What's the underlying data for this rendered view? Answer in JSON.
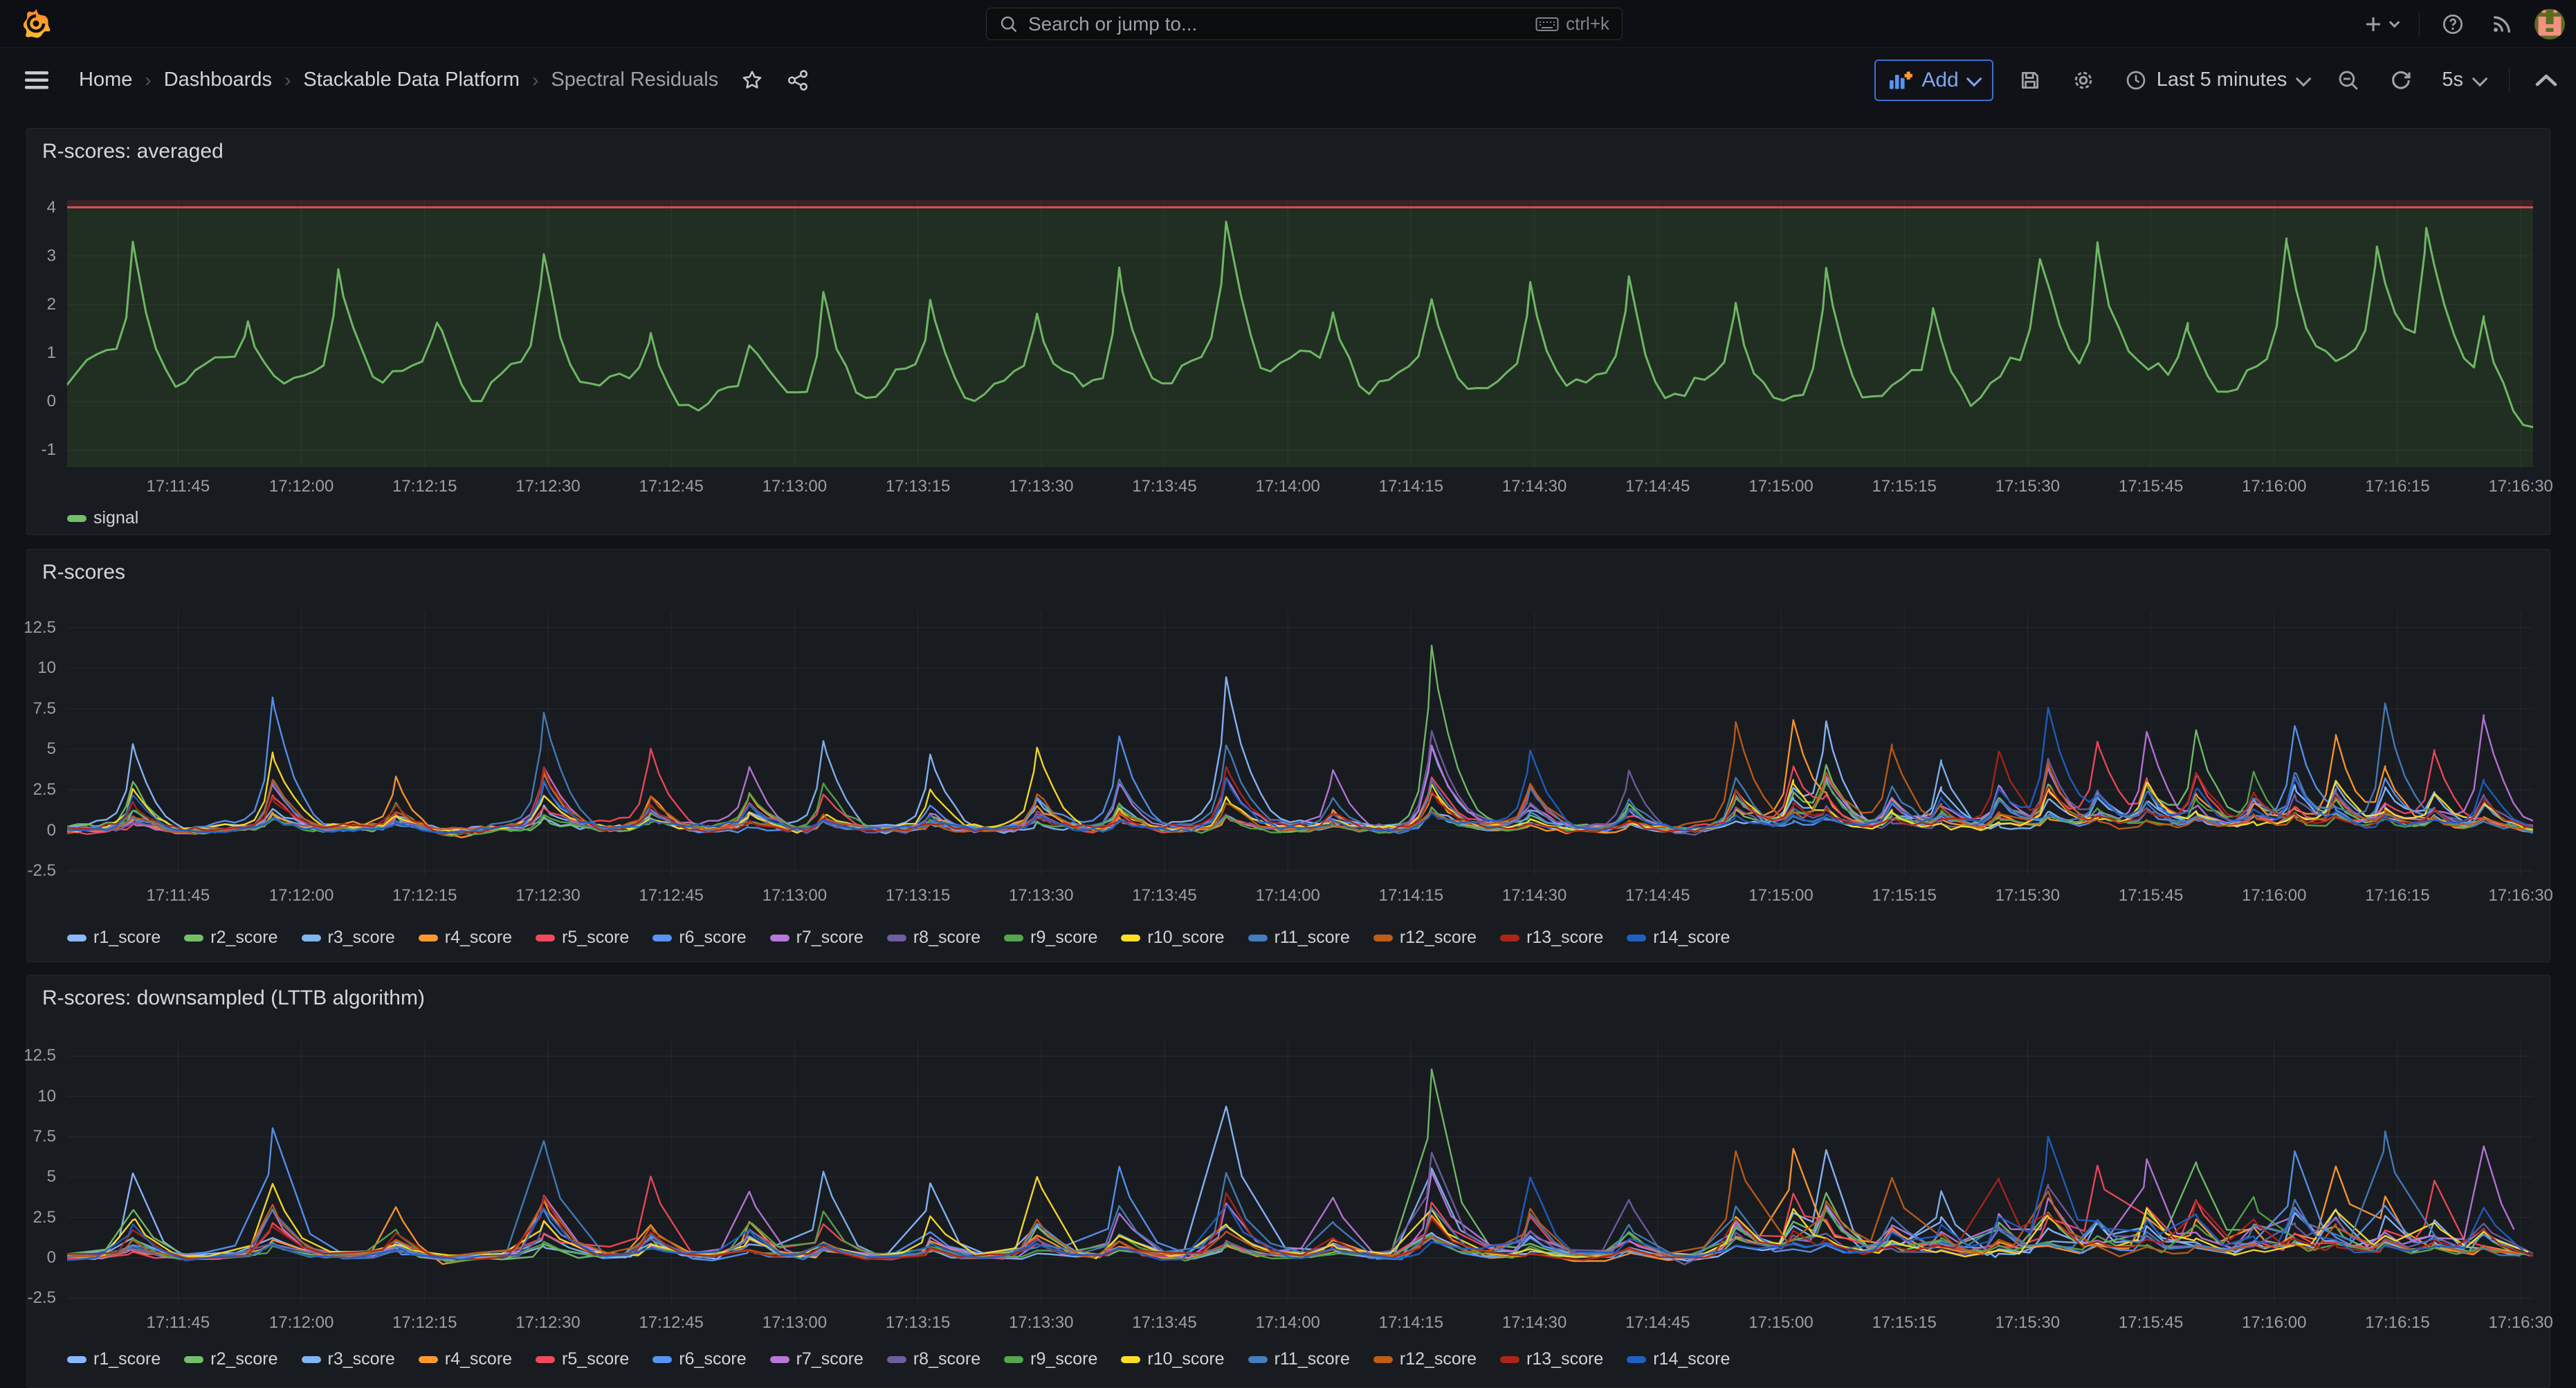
{
  "topbar": {
    "search_placeholder": "Search or jump to...",
    "search_shortcut": "ctrl+k"
  },
  "breadcrumb": {
    "items": [
      "Home",
      "Dashboards",
      "Stackable Data Platform",
      "Spectral Residuals"
    ]
  },
  "toolbar": {
    "add_label": "Add",
    "time_range_label": "Last 5 minutes",
    "refresh_interval_label": "5s"
  },
  "icons": [
    "grafana-logo",
    "search",
    "keyboard",
    "plus",
    "chevron-down",
    "help-circle",
    "rss",
    "user-avatar",
    "menu",
    "star",
    "share",
    "add-panel",
    "save",
    "settings",
    "clock",
    "zoom-out",
    "refresh",
    "chevron-up"
  ],
  "colors": {
    "accent_blue": "#3f6fd0",
    "threshold_red_line": "#d05059",
    "threshold_above_fill": "#3a2327",
    "threshold_below_fill": "#212e22",
    "panel_bg": "#181b20",
    "page_bg": "#111217"
  },
  "chart_data": [
    {
      "type": "line",
      "title": "R-scores: averaged",
      "x_tick_labels": [
        "17:11:45",
        "17:12:00",
        "17:12:15",
        "17:12:30",
        "17:12:45",
        "17:13:00",
        "17:13:15",
        "17:13:30",
        "17:13:45",
        "17:14:00",
        "17:14:15",
        "17:14:30",
        "17:14:45",
        "17:15:00",
        "17:15:15",
        "17:15:30",
        "17:15:45",
        "17:16:00",
        "17:16:15",
        "17:16:30"
      ],
      "x_tick_start_frac": 0.045,
      "x_tick_step_frac": 0.05,
      "x_window_seconds": 300,
      "y_ticks": [
        4,
        3,
        2,
        1,
        0,
        -1
      ],
      "y_tick_labels": [
        "4",
        "3",
        "2",
        "1",
        "0",
        "-1"
      ],
      "ylim": [
        -1.35,
        4.15
      ],
      "threshold": {
        "value": 4,
        "line_color": "#d05059",
        "above_fill": "#3a2327",
        "below_fill": "#212e22"
      },
      "series": [
        {
          "name": "signal",
          "color": "#73bf69"
        }
      ],
      "sample_step_s": 1.2,
      "noise": 0.26,
      "wander": 0.2,
      "pre": 0.9,
      "dip": 0.85,
      "line_width": 3,
      "spikes_t_peak": [
        [
          8,
          3.3
        ],
        [
          22,
          1.4
        ],
        [
          33,
          2.9
        ],
        [
          45,
          1.6
        ],
        [
          58,
          3.2
        ],
        [
          71,
          1.5
        ],
        [
          83,
          1.3
        ],
        [
          92,
          2.9
        ],
        [
          105,
          2.2
        ],
        [
          118,
          1.8
        ],
        [
          128,
          3.0
        ],
        [
          141,
          3.7
        ],
        [
          154,
          1.6
        ],
        [
          166,
          2.3
        ],
        [
          178,
          2.5
        ],
        [
          190,
          2.7
        ],
        [
          203,
          2.2
        ],
        [
          214,
          3.2
        ],
        [
          227,
          1.9
        ],
        [
          240,
          2.3
        ],
        [
          247,
          3.9
        ],
        [
          258,
          1.5
        ],
        [
          270,
          3.2
        ],
        [
          281,
          2.3
        ],
        [
          287,
          3.5
        ],
        [
          294,
          1.9
        ]
      ]
    },
    {
      "type": "line",
      "title": "R-scores",
      "x_tick_labels": [
        "17:11:45",
        "17:12:00",
        "17:12:15",
        "17:12:30",
        "17:12:45",
        "17:13:00",
        "17:13:15",
        "17:13:30",
        "17:13:45",
        "17:14:00",
        "17:14:15",
        "17:14:30",
        "17:14:45",
        "17:15:00",
        "17:15:15",
        "17:15:30",
        "17:15:45",
        "17:16:00",
        "17:16:15",
        "17:16:30"
      ],
      "x_tick_start_frac": 0.045,
      "x_tick_step_frac": 0.05,
      "x_window_seconds": 300,
      "y_ticks": [
        12.5,
        10,
        7.5,
        5,
        2.5,
        0,
        -2.5
      ],
      "y_tick_labels": [
        "12.5",
        "10",
        "7.5",
        "5",
        "2.5",
        "0",
        "-2.5"
      ],
      "ylim": [
        -2.75,
        13.55
      ],
      "series": [
        {
          "name": "r1_score",
          "color": "#8ab8ff"
        },
        {
          "name": "r2_score",
          "color": "#73bf69"
        },
        {
          "name": "r3_score",
          "color": "#7fb5f2"
        },
        {
          "name": "r4_score",
          "color": "#ff9830"
        },
        {
          "name": "r5_score",
          "color": "#f2495c"
        },
        {
          "name": "r6_score",
          "color": "#5794f2"
        },
        {
          "name": "r7_score",
          "color": "#b877d9"
        },
        {
          "name": "r8_score",
          "color": "#705da0"
        },
        {
          "name": "r9_score",
          "color": "#56a64b"
        },
        {
          "name": "r10_score",
          "color": "#fade2a"
        },
        {
          "name": "r11_score",
          "color": "#447ebc"
        },
        {
          "name": "r12_score",
          "color": "#c15c17"
        },
        {
          "name": "r13_score",
          "color": "#ac2519"
        },
        {
          "name": "r14_score",
          "color": "#1f60c4"
        }
      ],
      "sample_step_s": 1.2,
      "noise": 0.3,
      "wander": 0.1,
      "pre": 0.45,
      "dip": 0.9,
      "line_width": 2.4,
      "spikes_t_peak_lead": [
        [
          8,
          5.6,
          0
        ],
        [
          25,
          8.8,
          5
        ],
        [
          40,
          3.6,
          3
        ],
        [
          58,
          8.1,
          10
        ],
        [
          71,
          5.3,
          4
        ],
        [
          83,
          4.2,
          6
        ],
        [
          92,
          6.0,
          2
        ],
        [
          105,
          5.1,
          0
        ],
        [
          118,
          5.6,
          9
        ],
        [
          128,
          6.1,
          5
        ],
        [
          141,
          10.2,
          0
        ],
        [
          154,
          4.1,
          6
        ],
        [
          166,
          12.4,
          1
        ],
        [
          178,
          5.3,
          13
        ],
        [
          190,
          4.1,
          7
        ],
        [
          203,
          7.3,
          11
        ],
        [
          210,
          7.2,
          3
        ],
        [
          214,
          6.9,
          0
        ],
        [
          222,
          5.3,
          11
        ],
        [
          228,
          4.6,
          2
        ],
        [
          235,
          5.2,
          12
        ],
        [
          241,
          8.2,
          13
        ],
        [
          247,
          5.8,
          4
        ],
        [
          253,
          6.6,
          6
        ],
        [
          259,
          6.4,
          1
        ],
        [
          266,
          4.0,
          8
        ],
        [
          271,
          7.0,
          5
        ],
        [
          276,
          6.1,
          3
        ],
        [
          282,
          8.3,
          10
        ],
        [
          288,
          5.1,
          4
        ],
        [
          294,
          7.6,
          6
        ]
      ]
    },
    {
      "type": "line",
      "title": "R-scores: downsampled (LTTB algorithm)",
      "x_tick_labels": [
        "17:11:45",
        "17:12:00",
        "17:12:15",
        "17:12:30",
        "17:12:45",
        "17:13:00",
        "17:13:15",
        "17:13:30",
        "17:13:45",
        "17:14:00",
        "17:14:15",
        "17:14:30",
        "17:14:45",
        "17:15:00",
        "17:15:15",
        "17:15:30",
        "17:15:45",
        "17:16:00",
        "17:16:15",
        "17:16:30"
      ],
      "x_tick_start_frac": 0.045,
      "x_tick_step_frac": 0.05,
      "x_window_seconds": 300,
      "y_ticks": [
        12.5,
        10,
        7.5,
        5,
        2.5,
        0,
        -2.5
      ],
      "y_tick_labels": [
        "12.5",
        "10",
        "7.5",
        "5",
        "2.5",
        "0",
        "-2.5"
      ],
      "ylim": [
        -2.75,
        13.55
      ],
      "series": [
        {
          "name": "r1_score",
          "color": "#8ab8ff"
        },
        {
          "name": "r2_score",
          "color": "#73bf69"
        },
        {
          "name": "r3_score",
          "color": "#7fb5f2"
        },
        {
          "name": "r4_score",
          "color": "#ff9830"
        },
        {
          "name": "r5_score",
          "color": "#f2495c"
        },
        {
          "name": "r6_score",
          "color": "#5794f2"
        },
        {
          "name": "r7_score",
          "color": "#b877d9"
        },
        {
          "name": "r8_score",
          "color": "#705da0"
        },
        {
          "name": "r9_score",
          "color": "#56a64b"
        },
        {
          "name": "r10_score",
          "color": "#fade2a"
        },
        {
          "name": "r11_score",
          "color": "#447ebc"
        },
        {
          "name": "r12_score",
          "color": "#c15c17"
        },
        {
          "name": "r13_score",
          "color": "#ac2519"
        },
        {
          "name": "r14_score",
          "color": "#1f60c4"
        }
      ],
      "sample_step_s": 3.6,
      "jitter": true,
      "noise": 0.3,
      "wander": 0.1,
      "pre": 0.45,
      "dip": 0.9,
      "line_width": 2.4,
      "spikes_t_peak_lead": [
        [
          8,
          5.6,
          0
        ],
        [
          25,
          8.8,
          5
        ],
        [
          40,
          3.6,
          3
        ],
        [
          58,
          8.1,
          10
        ],
        [
          71,
          5.3,
          4
        ],
        [
          83,
          4.2,
          6
        ],
        [
          92,
          6.0,
          2
        ],
        [
          105,
          5.1,
          0
        ],
        [
          118,
          5.6,
          9
        ],
        [
          128,
          6.1,
          5
        ],
        [
          141,
          10.2,
          0
        ],
        [
          154,
          4.1,
          6
        ],
        [
          166,
          12.8,
          1
        ],
        [
          178,
          5.3,
          13
        ],
        [
          190,
          4.1,
          7
        ],
        [
          203,
          7.3,
          11
        ],
        [
          210,
          7.2,
          3
        ],
        [
          214,
          6.9,
          0
        ],
        [
          222,
          5.3,
          11
        ],
        [
          228,
          4.6,
          2
        ],
        [
          235,
          5.2,
          12
        ],
        [
          241,
          8.2,
          13
        ],
        [
          247,
          5.8,
          4
        ],
        [
          253,
          6.6,
          6
        ],
        [
          259,
          6.4,
          1
        ],
        [
          266,
          4.0,
          8
        ],
        [
          271,
          7.0,
          5
        ],
        [
          276,
          6.1,
          3
        ],
        [
          282,
          8.3,
          10
        ],
        [
          288,
          5.1,
          4
        ],
        [
          294,
          7.6,
          6
        ]
      ]
    }
  ]
}
